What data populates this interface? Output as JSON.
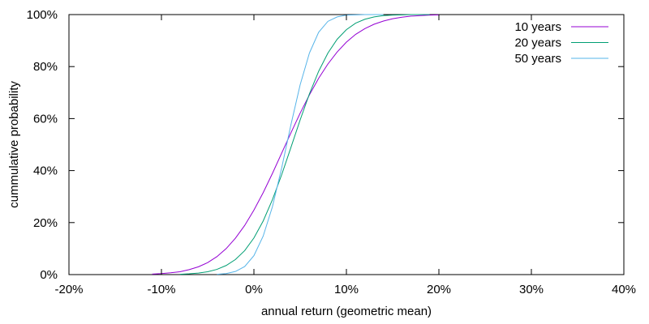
{
  "chart_data": {
    "type": "line",
    "title": "",
    "xlabel": "annual return (geometric mean)",
    "ylabel": "cummulative probability",
    "xlim": [
      -20,
      40
    ],
    "ylim": [
      0,
      100
    ],
    "x_ticks": [
      -20,
      -10,
      0,
      10,
      20,
      30,
      40
    ],
    "x_tick_labels": [
      "-20%",
      "-10%",
      "0%",
      "10%",
      "20%",
      "30%",
      "40%"
    ],
    "y_ticks": [
      0,
      20,
      40,
      60,
      80,
      100
    ],
    "y_tick_labels": [
      "0%",
      "20%",
      "40%",
      "60%",
      "80%",
      "100%"
    ],
    "grid": false,
    "legend_position": "top-right",
    "series": [
      {
        "name": "10 years",
        "color": "#9400d3",
        "x": [
          -11,
          -10,
          -9,
          -8,
          -7,
          -6,
          -5,
          -4,
          -3,
          -2,
          -1,
          0,
          1,
          2,
          3,
          4,
          5,
          6,
          7,
          8,
          9,
          10,
          11,
          12,
          13,
          14,
          15,
          16,
          17,
          18,
          19,
          20
        ],
        "y": [
          0.2,
          0.4,
          0.7,
          1.1,
          1.9,
          3.0,
          4.6,
          6.9,
          10.0,
          14.0,
          18.9,
          24.8,
          31.5,
          38.9,
          46.7,
          54.5,
          62.1,
          69.1,
          75.5,
          81.0,
          85.6,
          89.4,
          92.4,
          94.6,
          96.3,
          97.5,
          98.4,
          99.0,
          99.4,
          99.6,
          99.8,
          99.9
        ]
      },
      {
        "name": "20 years",
        "color": "#009e73",
        "x": [
          -8,
          -7,
          -6,
          -5,
          -4,
          -3,
          -2,
          -1,
          0,
          1,
          2,
          3,
          4,
          5,
          6,
          7,
          8,
          9,
          10,
          11,
          12,
          13,
          14,
          15,
          16,
          17,
          18,
          19
        ],
        "y": [
          0.1,
          0.3,
          0.6,
          1.1,
          2.0,
          3.5,
          5.8,
          9.2,
          14.1,
          20.6,
          28.8,
          38.4,
          48.9,
          59.5,
          69.5,
          78.2,
          85.2,
          90.5,
          94.2,
          96.7,
          98.2,
          99.1,
          99.6,
          99.8,
          99.9,
          100.0,
          100.0,
          100.0
        ]
      },
      {
        "name": "50 years",
        "color": "#56b4e9",
        "x": [
          -4,
          -3,
          -2,
          -1,
          0,
          1,
          2,
          3,
          4,
          5,
          6,
          7,
          8,
          9,
          10,
          11,
          12,
          13,
          14
        ],
        "y": [
          0.1,
          0.4,
          1.2,
          3.1,
          7.3,
          14.8,
          26.1,
          41.0,
          57.6,
          73.0,
          85.2,
          93.2,
          97.4,
          99.1,
          99.8,
          99.9,
          100.0,
          100.0,
          100.0
        ]
      }
    ]
  }
}
